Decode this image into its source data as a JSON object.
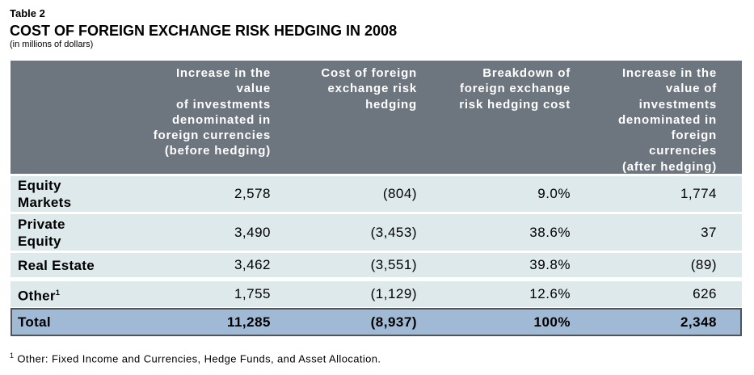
{
  "header": {
    "label": "Table 2",
    "title": "COST OF FOREIGN EXCHANGE RISK HEDGING IN 2008",
    "subtitle": "(in millions of dollars)"
  },
  "table": {
    "columns": [
      "Increase in the\nvalue\nof investments\ndenominated in\nforeign currencies\n(before hedging)",
      "Cost of foreign\nexchange risk\nhedging",
      "Breakdown of\nforeign exchange\nrisk hedging cost",
      "Increase in the\nvalue of\ninvestments\ndenominated in\nforeign\ncurrencies\n(after hedging)"
    ],
    "rows": [
      {
        "label": "Equity\nMarkets",
        "cells": [
          "2,578",
          "(804)",
          "9.0%",
          "1,774"
        ]
      },
      {
        "label": "Private\nEquity",
        "cells": [
          "3,490",
          "(3,453)",
          "38.6%",
          "37"
        ]
      },
      {
        "label": "Real Estate",
        "cells": [
          "3,462",
          "(3,551)",
          "39.8%",
          "(89)"
        ]
      },
      {
        "label": "Other",
        "note": "1",
        "cells": [
          "1,755",
          "(1,129)",
          "12.6%",
          "626"
        ]
      }
    ],
    "total": {
      "label": "Total",
      "cells": [
        "11,285",
        "(8,937)",
        "100%",
        "2,348"
      ]
    }
  },
  "footnote": {
    "marker": "1",
    "text": "Other: Fixed Income and Currencies, Hedge Funds, and Asset Allocation."
  }
}
